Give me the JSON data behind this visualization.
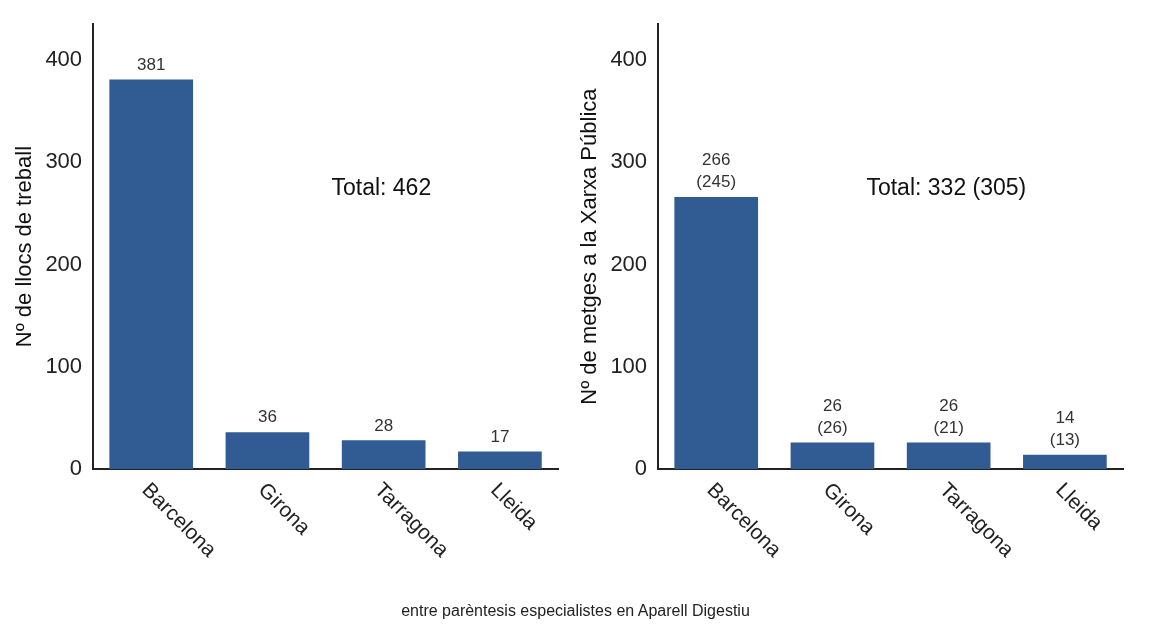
{
  "chart_data": [
    {
      "type": "bar",
      "ylabel": "Nº de llocs de treball",
      "categories": [
        "Barcelona",
        "Girona",
        "Tarragona",
        "Lleida"
      ],
      "values": [
        381,
        36,
        28,
        17
      ],
      "color": "#315b93",
      "data_labels": true,
      "ylim": [
        0,
        435
      ],
      "yticks": [
        0,
        100,
        200,
        300,
        400
      ],
      "grid": false,
      "legend": false,
      "annotations": [
        "Total: 462"
      ]
    },
    {
      "type": "bar",
      "ylabel": "Nº de metges a la Xarxa Pública",
      "categories": [
        "Barcelona",
        "Girona",
        "Tarragona",
        "Lleida"
      ],
      "values": [
        266,
        26,
        26,
        14
      ],
      "value_labels": [
        "266\n(245)",
        "26\n(26)",
        "26\n(21)",
        "14\n(13)"
      ],
      "color": "#315b93",
      "ylim": [
        0,
        435
      ],
      "yticks": [
        0,
        100,
        200,
        300,
        400
      ],
      "grid": false,
      "legend": false,
      "annotations": [
        "Total: 332 (305)",
        "entre parèntesis especialistes en Aparell Digestiu"
      ]
    }
  ]
}
